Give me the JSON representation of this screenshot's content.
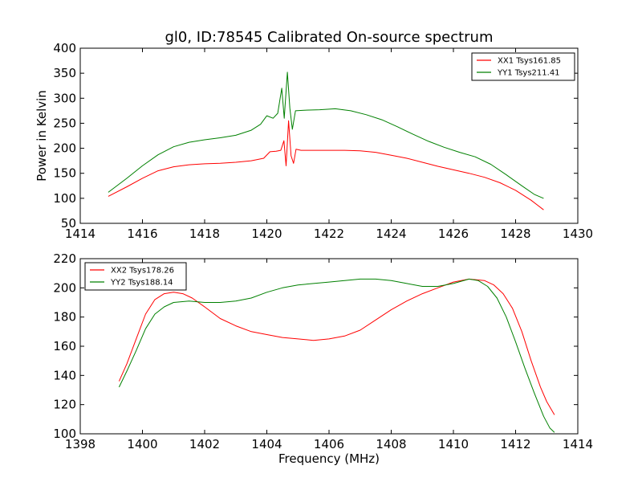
{
  "chart_data": [
    {
      "type": "line",
      "title": "gl0, ID:78545 Calibrated On-source spectrum",
      "xlabel": "",
      "ylabel": "Power in Kelvin",
      "xlim": [
        1414,
        1430
      ],
      "ylim": [
        50,
        400
      ],
      "xticks": [
        1414,
        1416,
        1418,
        1420,
        1422,
        1424,
        1426,
        1428,
        1430
      ],
      "yticks": [
        50,
        100,
        150,
        200,
        250,
        300,
        350,
        400
      ],
      "legend_position": "top-right",
      "series": [
        {
          "name": "XX1 Tsys161.85",
          "color": "#ff0000",
          "points": [
            [
              1414.9,
              104
            ],
            [
              1415.5,
              123
            ],
            [
              1416.0,
              140
            ],
            [
              1416.5,
              155
            ],
            [
              1417.0,
              163
            ],
            [
              1417.5,
              167
            ],
            [
              1418.0,
              169
            ],
            [
              1418.5,
              170
            ],
            [
              1419.0,
              172
            ],
            [
              1419.5,
              175
            ],
            [
              1419.9,
              180
            ],
            [
              1420.1,
              193
            ],
            [
              1420.3,
              194
            ],
            [
              1420.45,
              196
            ],
            [
              1420.55,
              215
            ],
            [
              1420.62,
              165
            ],
            [
              1420.7,
              255
            ],
            [
              1420.78,
              185
            ],
            [
              1420.86,
              170
            ],
            [
              1420.94,
              198
            ],
            [
              1421.1,
              196
            ],
            [
              1421.5,
              196
            ],
            [
              1422.0,
              196
            ],
            [
              1422.5,
              196
            ],
            [
              1423.0,
              195
            ],
            [
              1423.5,
              192
            ],
            [
              1424.0,
              186
            ],
            [
              1424.5,
              180
            ],
            [
              1425.0,
              172
            ],
            [
              1425.5,
              164
            ],
            [
              1426.0,
              157
            ],
            [
              1426.5,
              150
            ],
            [
              1427.0,
              142
            ],
            [
              1427.5,
              131
            ],
            [
              1428.0,
              116
            ],
            [
              1428.5,
              96
            ],
            [
              1428.9,
              77
            ]
          ]
        },
        {
          "name": "YY1 Tsys211.41",
          "color": "#008000",
          "points": [
            [
              1414.9,
              112
            ],
            [
              1415.5,
              140
            ],
            [
              1416.0,
              165
            ],
            [
              1416.5,
              187
            ],
            [
              1417.0,
              203
            ],
            [
              1417.5,
              212
            ],
            [
              1418.0,
              217
            ],
            [
              1418.5,
              221
            ],
            [
              1419.0,
              226
            ],
            [
              1419.5,
              236
            ],
            [
              1419.8,
              248
            ],
            [
              1420.0,
              265
            ],
            [
              1420.2,
              260
            ],
            [
              1420.35,
              270
            ],
            [
              1420.48,
              320
            ],
            [
              1420.56,
              260
            ],
            [
              1420.66,
              352
            ],
            [
              1420.74,
              280
            ],
            [
              1420.82,
              238
            ],
            [
              1420.92,
              275
            ],
            [
              1421.2,
              276
            ],
            [
              1421.7,
              277
            ],
            [
              1422.2,
              279
            ],
            [
              1422.7,
              275
            ],
            [
              1423.2,
              267
            ],
            [
              1423.7,
              257
            ],
            [
              1424.2,
              243
            ],
            [
              1424.7,
              228
            ],
            [
              1425.2,
              214
            ],
            [
              1425.7,
              202
            ],
            [
              1426.2,
              192
            ],
            [
              1426.7,
              183
            ],
            [
              1427.2,
              168
            ],
            [
              1427.7,
              147
            ],
            [
              1428.2,
              125
            ],
            [
              1428.6,
              108
            ],
            [
              1428.9,
              100
            ]
          ]
        }
      ]
    },
    {
      "type": "line",
      "title": "",
      "xlabel": "Frequency (MHz)",
      "ylabel": "",
      "xlim": [
        1398,
        1414
      ],
      "ylim": [
        100,
        220
      ],
      "xticks": [
        1398,
        1400,
        1402,
        1404,
        1406,
        1408,
        1410,
        1412,
        1414
      ],
      "yticks": [
        100,
        120,
        140,
        160,
        180,
        200,
        220
      ],
      "legend_position": "top-left",
      "series": [
        {
          "name": "XX2 Tsys178.26",
          "color": "#ff0000",
          "points": [
            [
              1399.25,
              136
            ],
            [
              1399.5,
              148
            ],
            [
              1399.8,
              165
            ],
            [
              1400.1,
              182
            ],
            [
              1400.4,
              192
            ],
            [
              1400.7,
              196
            ],
            [
              1401.0,
              197
            ],
            [
              1401.3,
              196
            ],
            [
              1401.6,
              193
            ],
            [
              1402.0,
              187
            ],
            [
              1402.5,
              179
            ],
            [
              1403.0,
              174
            ],
            [
              1403.5,
              170
            ],
            [
              1404.0,
              168
            ],
            [
              1404.5,
              166
            ],
            [
              1405.0,
              165
            ],
            [
              1405.5,
              164
            ],
            [
              1406.0,
              165
            ],
            [
              1406.5,
              167
            ],
            [
              1407.0,
              171
            ],
            [
              1407.5,
              178
            ],
            [
              1408.0,
              185
            ],
            [
              1408.5,
              191
            ],
            [
              1409.0,
              196
            ],
            [
              1409.5,
              200
            ],
            [
              1410.0,
              204
            ],
            [
              1410.5,
              206
            ],
            [
              1411.0,
              205
            ],
            [
              1411.3,
              202
            ],
            [
              1411.6,
              196
            ],
            [
              1411.9,
              186
            ],
            [
              1412.2,
              170
            ],
            [
              1412.5,
              150
            ],
            [
              1412.8,
              132
            ],
            [
              1413.0,
              122
            ],
            [
              1413.25,
              113
            ]
          ]
        },
        {
          "name": "YY2 Tsys188.14",
          "color": "#008000",
          "points": [
            [
              1399.25,
              132
            ],
            [
              1399.5,
              143
            ],
            [
              1399.8,
              157
            ],
            [
              1400.1,
              172
            ],
            [
              1400.4,
              182
            ],
            [
              1400.7,
              187
            ],
            [
              1401.0,
              190
            ],
            [
              1401.5,
              191
            ],
            [
              1402.0,
              190
            ],
            [
              1402.5,
              190
            ],
            [
              1403.0,
              191
            ],
            [
              1403.5,
              193
            ],
            [
              1404.0,
              197
            ],
            [
              1404.5,
              200
            ],
            [
              1405.0,
              202
            ],
            [
              1405.5,
              203
            ],
            [
              1406.0,
              204
            ],
            [
              1406.5,
              205
            ],
            [
              1407.0,
              206
            ],
            [
              1407.5,
              206
            ],
            [
              1408.0,
              205
            ],
            [
              1408.5,
              203
            ],
            [
              1409.0,
              201
            ],
            [
              1409.5,
              201
            ],
            [
              1410.0,
              203
            ],
            [
              1410.5,
              206
            ],
            [
              1410.8,
              205
            ],
            [
              1411.1,
              201
            ],
            [
              1411.4,
              193
            ],
            [
              1411.7,
              180
            ],
            [
              1412.0,
              163
            ],
            [
              1412.3,
              145
            ],
            [
              1412.6,
              128
            ],
            [
              1412.9,
              112
            ],
            [
              1413.1,
              104
            ],
            [
              1413.25,
              101
            ]
          ]
        }
      ]
    }
  ]
}
